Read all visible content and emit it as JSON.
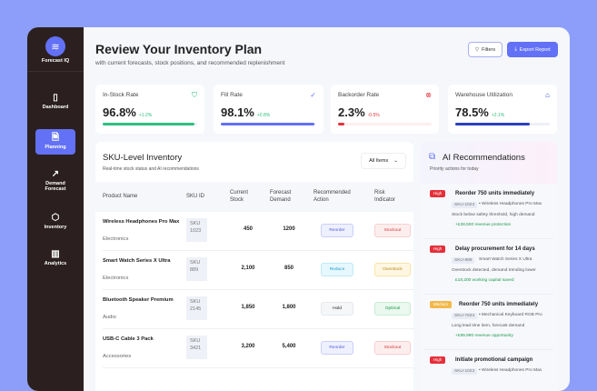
{
  "app": {
    "name": "Forecast IQ",
    "logo_icon": "layers-icon"
  },
  "sidebar": {
    "items": [
      {
        "label": "Dashboard",
        "icon": "book-icon",
        "active": false
      },
      {
        "label": "Planning",
        "icon": "document-check-icon",
        "active": true
      },
      {
        "label": "Demand Forecast",
        "icon": "trend-arrow-icon",
        "active": false
      },
      {
        "label": "Inventory",
        "icon": "box-icon",
        "active": false
      },
      {
        "label": "Analytics",
        "icon": "bar-chart-icon",
        "active": false
      }
    ]
  },
  "header": {
    "title": "Review Your Inventory Plan",
    "subtitle": "with current forecasts, stock positions, and recommended replenishment",
    "filters_label": "Filters",
    "export_label": "Export Report"
  },
  "kpis": [
    {
      "label": "In-Stock Rate",
      "value": "96.8%",
      "change": "+1.2%",
      "progress": 96.8,
      "color": "#2fbf7f",
      "change_color": "#2fbf7f",
      "icon": "shield-check-icon"
    },
    {
      "label": "Fill Rate",
      "value": "98.1%",
      "change": "+0.8%",
      "progress": 98.1,
      "color": "#6271f5",
      "change_color": "#2fbf7f",
      "icon": "check-circle-icon"
    },
    {
      "label": "Backorder Rate",
      "value": "2.3%",
      "change": "-0.5%",
      "progress": 7,
      "color": "#e5303a",
      "change_color": "#e5303a",
      "icon": "x-circle-icon"
    },
    {
      "label": "Warehouse Utilization",
      "value": "78.5%",
      "change": "+2.1%",
      "progress": 78.5,
      "color": "#2a3fbf",
      "change_color": "#2fbf7f",
      "icon": "warehouse-icon"
    }
  ],
  "table": {
    "title": "SKU-Level Inventory",
    "subtitle": "Real-time stock status and AI recommendations",
    "filter": "All Items",
    "columns": [
      "Product Name",
      "SKU ID",
      "Current Stock",
      "Forecast Demand",
      "Recommended Action",
      "Risk Indicator"
    ],
    "rows": [
      {
        "name": "Wireless Headphones Pro Max",
        "category": "Electronics",
        "sku": "SKU 1023",
        "stock": "450",
        "demand": "1200",
        "action": "Reorder",
        "risk": "Stockout"
      },
      {
        "name": "Smart Watch Series X Ultra",
        "category": "Electronics",
        "sku": "SKU 889",
        "stock": "2,100",
        "demand": "850",
        "action": "Reduce",
        "risk": "Overstock"
      },
      {
        "name": "Bluetooth Speaker Premium",
        "category": "Audio",
        "sku": "SKU 2145",
        "stock": "1,850",
        "demand": "1,800",
        "action": "Hold",
        "risk": "Optimal"
      },
      {
        "name": "USB-C Cable 3 Pack",
        "category": "Accessories",
        "sku": "SKU 3421",
        "stock": "3,200",
        "demand": "5,400",
        "action": "Reorder",
        "risk": "Stockout"
      }
    ]
  },
  "ai": {
    "title": "AI Recommendations",
    "subtitle": "Priority actions for today",
    "icon": "sparkle-box-icon",
    "items": [
      {
        "priority": "High",
        "title": "Reorder 750 units immediately",
        "sku": "SKU-1023",
        "product": "• Wireless Headphones Pro Max",
        "desc": "Stock below safety threshold, high demand",
        "impact": "+£28,500 revenue protection"
      },
      {
        "priority": "High",
        "title": "Delay procurement for 14 days",
        "sku": "SKU-889",
        "product": "Smart Watch Series X Ultra",
        "desc": "Overstock detected, demand trending lower",
        "impact": "£18,200 working capital saved"
      },
      {
        "priority": "Medium",
        "title": "Reorder 750 units immediately",
        "sku": "SKU-7834",
        "product": "• Mechanical Keyboard RGB Pro",
        "desc": "Long lead time item, forecast demand",
        "impact": "+£89,990 revenue opportunity"
      },
      {
        "priority": "High",
        "title": "Initiate promotional campaign",
        "sku": "SKU-1023",
        "product": "• Wireless Headphones Pro Max",
        "desc": "",
        "impact": ""
      }
    ]
  }
}
